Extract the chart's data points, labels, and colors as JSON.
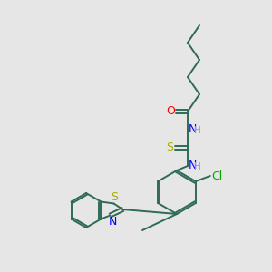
{
  "bg_color": "#e6e6e6",
  "bond_color": "#2d6b55",
  "line_width": 1.4,
  "atom_colors": {
    "O": "#ff0000",
    "N": "#0000ff",
    "S_thio": "#aaaa00",
    "S_btz": "#aaaa00",
    "Cl": "#00aa00",
    "H": "#999999"
  },
  "font_size": 8.5,
  "fig_size": [
    3.0,
    3.0
  ],
  "dpi": 100
}
